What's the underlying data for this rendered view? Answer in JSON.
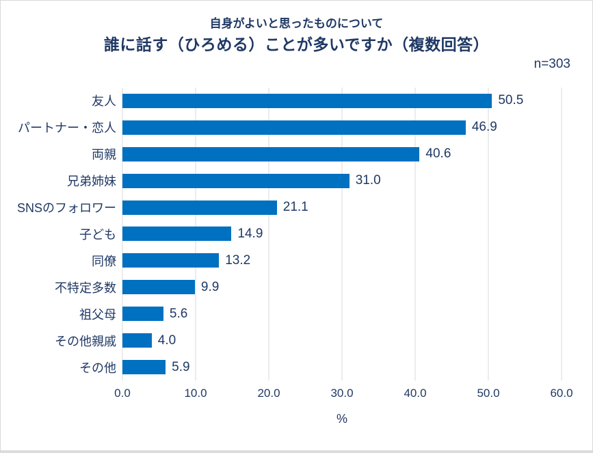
{
  "header": {
    "subtitle": "自身がよいと思ったものについて",
    "title": "誰に話す（ひろめる）ことが多いですか（複数回答）",
    "n_label": "n=303"
  },
  "chart_data": {
    "type": "bar",
    "orientation": "horizontal",
    "title": "誰に話す（ひろめる）ことが多いですか（複数回答）",
    "subtitle": "自身がよいと思ったものについて",
    "sample_size_label": "n=303",
    "categories": [
      "友人",
      "パートナー・恋人",
      "両親",
      "兄弟姉妹",
      "SNSのフォロワー",
      "子ども",
      "同僚",
      "不特定多数",
      "祖父母",
      "その他親戚",
      "その他"
    ],
    "values": [
      50.5,
      46.9,
      40.6,
      31.0,
      21.1,
      14.9,
      13.2,
      9.9,
      5.6,
      4.0,
      5.9
    ],
    "value_decimals": 1,
    "xlabel": "%",
    "ylabel": "",
    "xlim": [
      0,
      60
    ],
    "xticks": [
      0,
      10,
      20,
      30,
      40,
      50,
      60
    ],
    "xtick_decimals": 1,
    "grid": "vertical",
    "legend": "none",
    "colors": {
      "bar": "#0070C0",
      "text": "#1F3864",
      "gridline": "#D9D9D9",
      "background": "#FFFFFF",
      "border": "#D9D9D9"
    }
  }
}
